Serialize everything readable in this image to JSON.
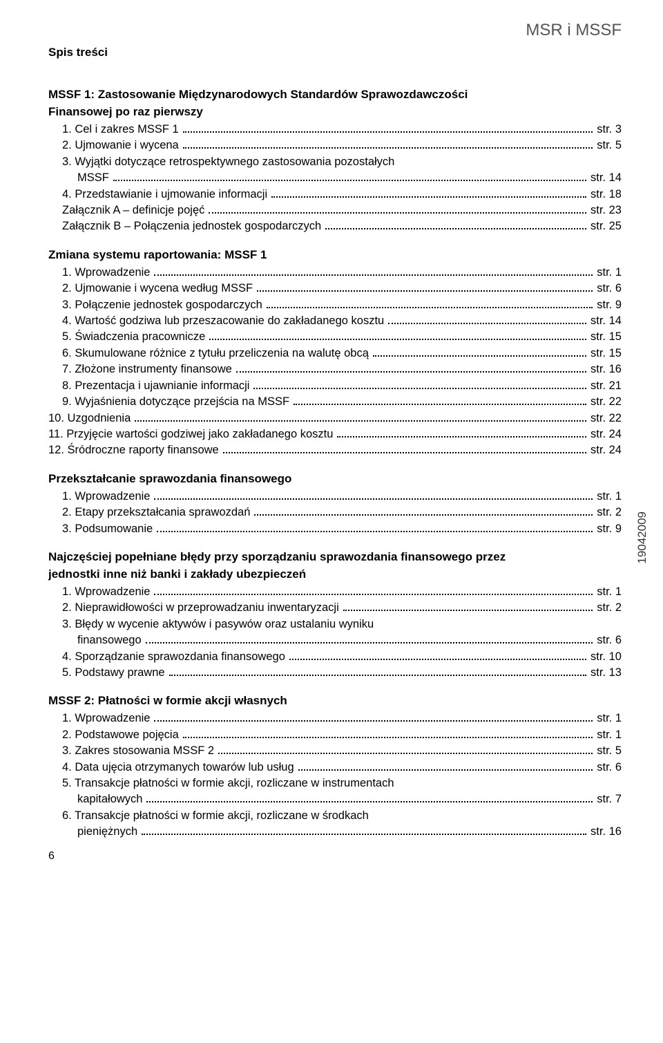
{
  "header": {
    "right": "MSR i MSSF",
    "left": "Spis treści"
  },
  "vertical_code": "19042009",
  "page_number": "6",
  "sections": [
    {
      "title": [
        "MSSF 1: Zastosowanie Międzynarodowych Standardów Sprawozdawczości",
        "Finansowej po raz pierwszy"
      ],
      "items": [
        {
          "label": "1. Cel i zakres MSSF 1",
          "page": "str. 3"
        },
        {
          "label": "2. Ujmowanie i wycena",
          "page": "str. 5"
        },
        {
          "label": "3. Wyjątki dotyczące retrospektywnego zastosowania pozostałych",
          "cont": "MSSF",
          "page": "str. 14"
        },
        {
          "label": "4. Przedstawianie i ujmowanie informacji",
          "page": "str. 18"
        },
        {
          "label": "Załącznik A – definicje pojęć",
          "page": "str. 23"
        },
        {
          "label": "Załącznik B – Połączenia jednostek gospodarczych",
          "page": "str. 25"
        }
      ]
    },
    {
      "title": [
        "Zmiana systemu raportowania: MSSF 1"
      ],
      "items": [
        {
          "label": "1. Wprowadzenie",
          "page": "str. 1"
        },
        {
          "label": "2. Ujmowanie i wycena według MSSF",
          "page": "str. 6"
        },
        {
          "label": "3. Połączenie jednostek gospodarczych",
          "page": "str. 9"
        },
        {
          "label": "4. Wartość godziwa lub przeszacowanie do zakładanego kosztu",
          "page": "str. 14"
        },
        {
          "label": "5. Świadczenia pracownicze",
          "page": "str. 15"
        },
        {
          "label": "6. Skumulowane różnice z tytułu przeliczenia na walutę obcą",
          "page": "str. 15"
        },
        {
          "label": "7. Złożone instrumenty finansowe",
          "page": "str. 16"
        },
        {
          "label": "8. Prezentacja i ujawnianie informacji",
          "page": "str. 21"
        },
        {
          "label": "9. Wyjaśnienia dotyczące przejścia na MSSF",
          "page": "str. 22"
        },
        {
          "label": "10. Uzgodnienia",
          "page": "str. 22",
          "no_indent": true
        },
        {
          "label": "11. Przyjęcie wartości godziwej jako zakładanego kosztu",
          "page": "str. 24",
          "no_indent": true
        },
        {
          "label": "12. Śródroczne raporty finansowe",
          "page": "str. 24",
          "no_indent": true
        }
      ]
    },
    {
      "title": [
        "Przekształcanie sprawozdania finansowego"
      ],
      "items": [
        {
          "label": "1. Wprowadzenie",
          "page": "str. 1"
        },
        {
          "label": "2. Etapy przekształcania sprawozdań",
          "page": "str. 2"
        },
        {
          "label": "3. Podsumowanie",
          "page": "str. 9"
        }
      ]
    },
    {
      "title": [
        "Najczęściej popełniane błędy przy sporządzaniu sprawozdania finansowego przez",
        "jednostki inne niż banki i zakłady ubezpieczeń"
      ],
      "items": [
        {
          "label": "1. Wprowadzenie",
          "page": "str. 1"
        },
        {
          "label": "2. Nieprawidłowości w przeprowadzaniu inwentaryzacji",
          "page": "str. 2"
        },
        {
          "label": "3. Błędy w wycenie aktywów i pasywów oraz ustalaniu wyniku",
          "cont": "finansowego",
          "page": "str. 6"
        },
        {
          "label": "4. Sporządzanie sprawozdania finansowego",
          "page": "str. 10"
        },
        {
          "label": "5. Podstawy prawne",
          "page": "str. 13"
        }
      ]
    },
    {
      "title": [
        "MSSF 2: Płatności w formie akcji własnych"
      ],
      "items": [
        {
          "label": "1. Wprowadzenie",
          "page": "str. 1"
        },
        {
          "label": "2. Podstawowe pojęcia",
          "page": "str. 1"
        },
        {
          "label": "3. Zakres stosowania MSSF 2",
          "page": "str. 5"
        },
        {
          "label": "4. Data ujęcia otrzymanych towarów lub usług",
          "page": "str. 6"
        },
        {
          "label": "5. Transakcje płatności w formie akcji, rozliczane w instrumentach",
          "cont": "kapitałowych",
          "page": "str. 7"
        },
        {
          "label": "6. Transakcje płatności w formie akcji, rozliczane w środkach",
          "cont": "pieniężnych",
          "page": "str. 16"
        }
      ]
    }
  ]
}
